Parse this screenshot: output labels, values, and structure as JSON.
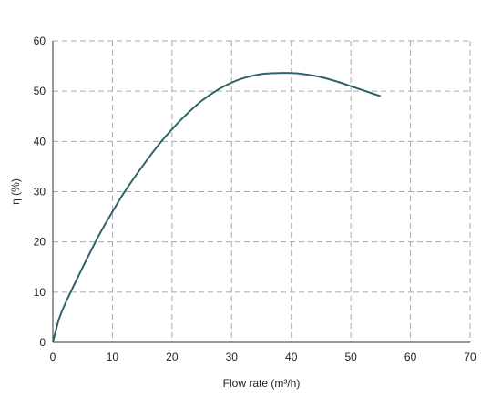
{
  "chart_data": {
    "type": "line",
    "title": "",
    "xlabel": "Flow rate (m³/h)",
    "ylabel": "η (%)",
    "xlim": [
      0,
      70
    ],
    "ylim": [
      0,
      60
    ],
    "xticks": [
      0,
      10,
      20,
      30,
      40,
      50,
      60,
      70
    ],
    "yticks": [
      0,
      10,
      20,
      30,
      40,
      50,
      60
    ],
    "xtick_labels": [
      "0",
      "10",
      "20",
      "30",
      "40",
      "50",
      "60",
      "70"
    ],
    "ytick_labels": [
      "0",
      "10",
      "20",
      "30",
      "40",
      "50",
      "60"
    ],
    "grid": true,
    "legend": "none",
    "series": [
      {
        "color": "#2e6468",
        "x": [
          0,
          1,
          2,
          4,
          6,
          8,
          10,
          12,
          15,
          18,
          20,
          22,
          25,
          28,
          30,
          32,
          35,
          38,
          40,
          42,
          45,
          48,
          50,
          52,
          55
        ],
        "y": [
          0,
          4.5,
          7.5,
          12.5,
          17.3,
          21.9,
          26.0,
          29.9,
          35.0,
          39.7,
          42.4,
          44.9,
          48.1,
          50.5,
          51.7,
          52.6,
          53.4,
          53.6,
          53.6,
          53.4,
          52.8,
          51.8,
          51.0,
          50.2,
          49.0
        ]
      }
    ]
  }
}
